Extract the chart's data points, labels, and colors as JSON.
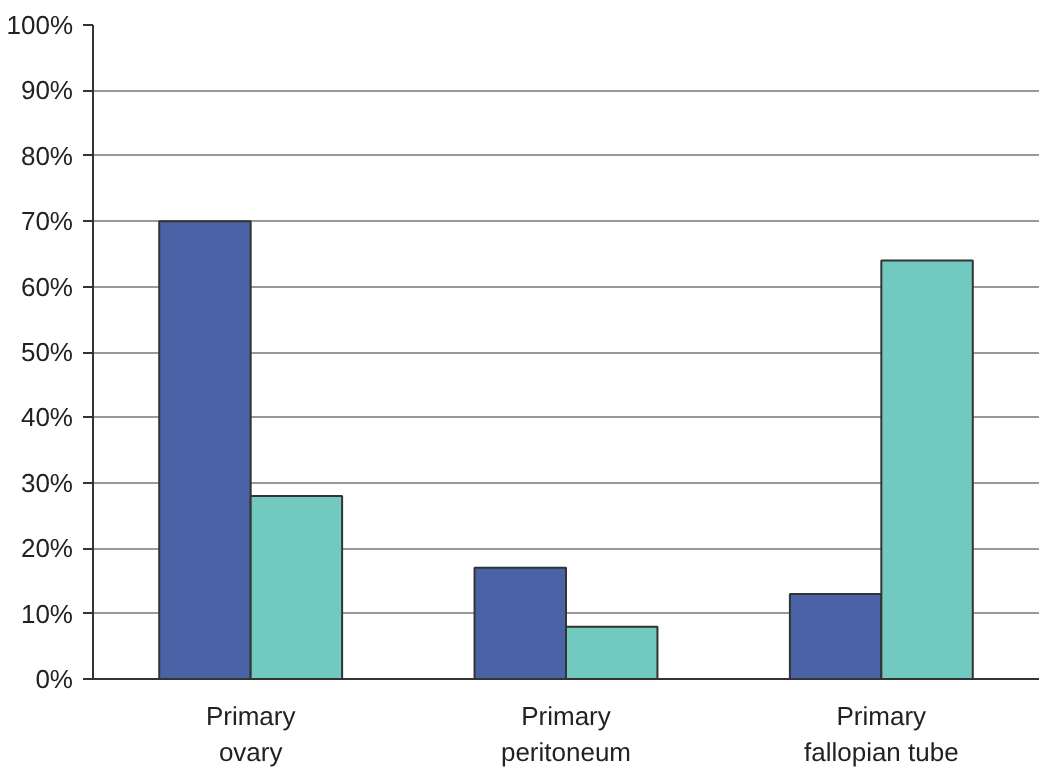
{
  "chart_data": {
    "type": "bar",
    "categories": [
      "Primary\novary",
      "Primary\nperitoneum",
      "Primary\nfallopian tube"
    ],
    "series": [
      {
        "color": "#4a62a6",
        "values": [
          70,
          17,
          13
        ]
      },
      {
        "color": "#72c9c0",
        "values": [
          28,
          8,
          64
        ]
      }
    ],
    "ylim": [
      0,
      100
    ],
    "yticks": [
      {
        "value": 0,
        "label": "0%"
      },
      {
        "value": 10,
        "label": "10%"
      },
      {
        "value": 20,
        "label": "20%"
      },
      {
        "value": 30,
        "label": "30%"
      },
      {
        "value": 40,
        "label": "40%"
      },
      {
        "value": 50,
        "label": "50%"
      },
      {
        "value": 60,
        "label": "60%"
      },
      {
        "value": 70,
        "label": "70%"
      },
      {
        "value": 80,
        "label": "80%"
      },
      {
        "value": 90,
        "label": "90%"
      },
      {
        "value": 100,
        "label": "100%"
      }
    ],
    "grid": "y"
  }
}
